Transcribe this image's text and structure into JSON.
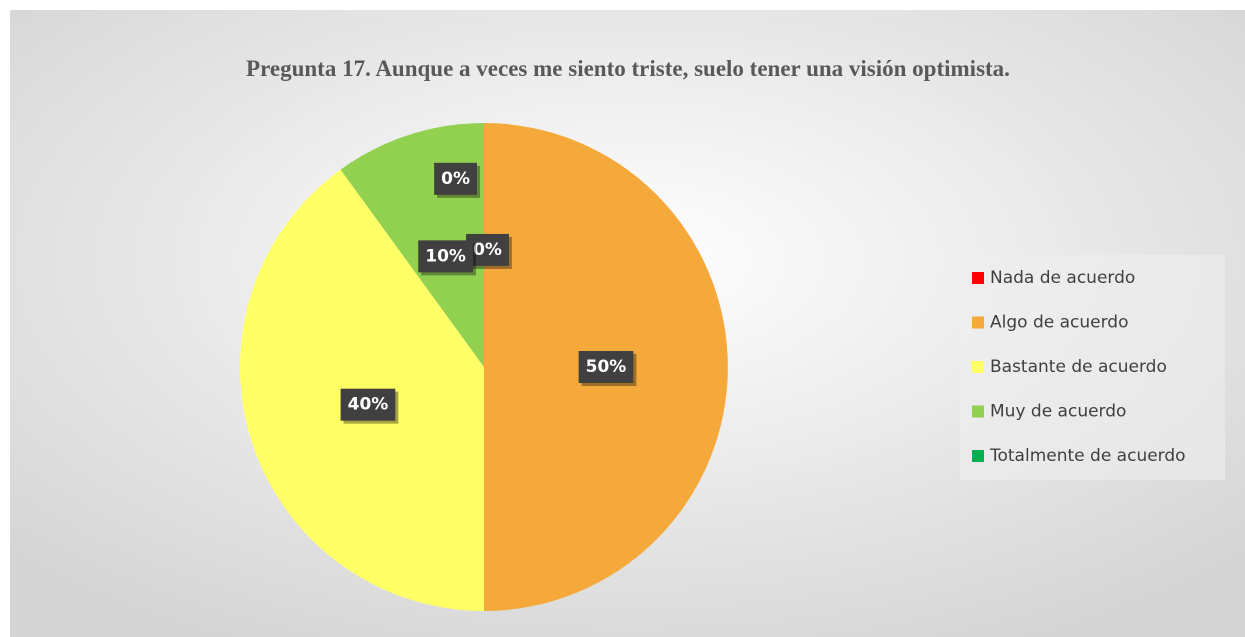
{
  "chart_data": {
    "type": "pie",
    "title": "Pregunta 17.  Aunque a veces me siento triste, suelo tener una visión optimista.",
    "categories": [
      "Nada de acuerdo",
      "Algo de acuerdo",
      "Bastante de acuerdo",
      "Muy de acuerdo",
      "Totalmente de acuerdo"
    ],
    "values": [
      0,
      50,
      40,
      10,
      0
    ],
    "value_labels": [
      "0%",
      "50%",
      "40%",
      "10%",
      "0%"
    ],
    "colors": [
      "#ff0000",
      "#f5a93b",
      "#ffff66",
      "#92d050",
      "#00b050"
    ],
    "legend": "right"
  }
}
